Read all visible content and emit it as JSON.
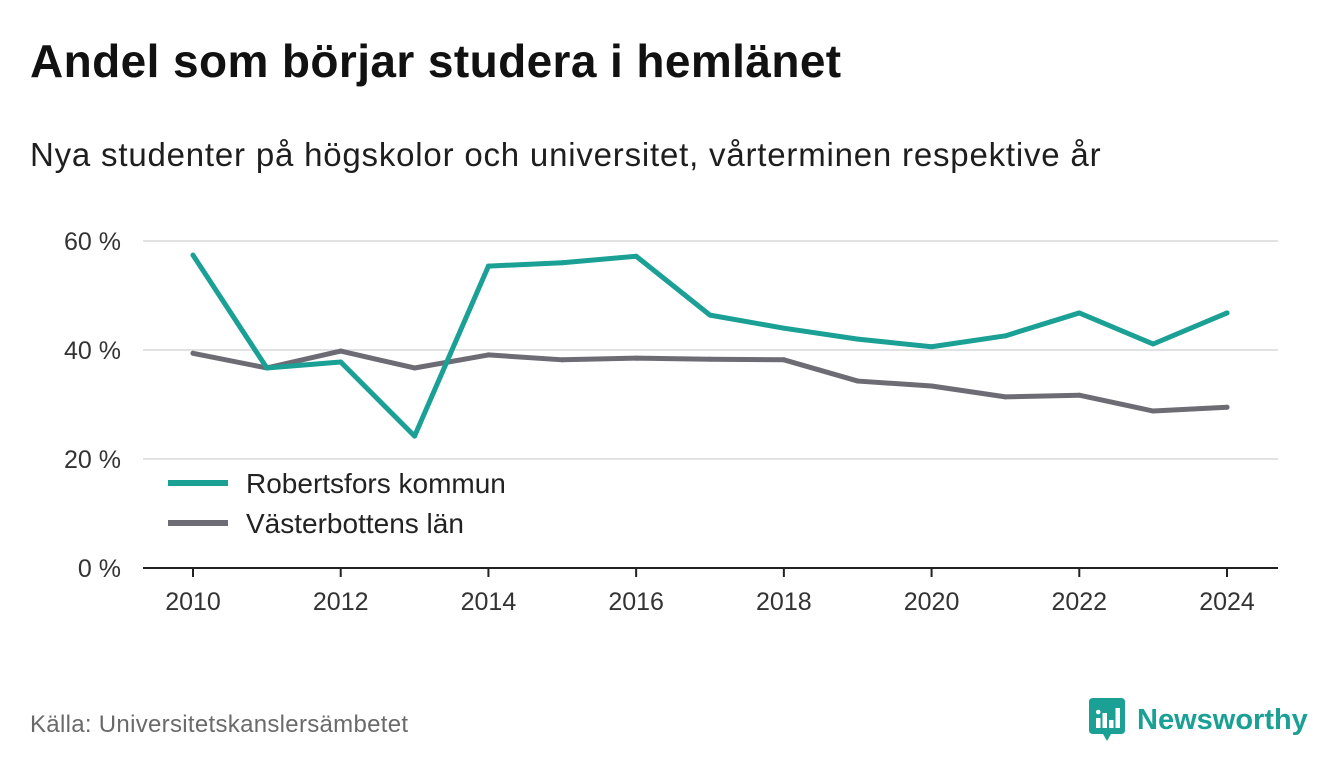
{
  "chart_data": {
    "type": "line",
    "title": "Andel som börjar studera i hemlänet",
    "subtitle": "Nya studenter på högskolor och universitet, vårterminen respektive år",
    "xlabel": "",
    "ylabel": "",
    "x": [
      2010,
      2011,
      2012,
      2013,
      2014,
      2015,
      2016,
      2017,
      2018,
      2019,
      2020,
      2021,
      2022,
      2023,
      2024
    ],
    "xlim": [
      2010,
      2024
    ],
    "ylim": [
      0,
      60
    ],
    "x_ticks": [
      2010,
      2012,
      2014,
      2016,
      2018,
      2020,
      2022,
      2024
    ],
    "x_tick_labels": [
      "2010",
      "2012",
      "2014",
      "2016",
      "2018",
      "2020",
      "2022",
      "2024"
    ],
    "y_ticks": [
      0,
      20,
      40,
      60
    ],
    "y_tick_labels": [
      "0 %",
      "20 %",
      "40 %",
      "60 %"
    ],
    "grid": "horizontal",
    "legend": "bottom-left",
    "series": [
      {
        "name": "Robertsfors kommun",
        "color": "#1aa095",
        "values": [
          57.4,
          36.7,
          37.8,
          24.2,
          55.4,
          56.0,
          57.2,
          46.4,
          44.0,
          42.0,
          40.6,
          42.6,
          46.8,
          41.1,
          46.8
        ]
      },
      {
        "name": "Västerbottens län",
        "color": "#6d6c74",
        "values": [
          39.4,
          36.7,
          39.8,
          36.7,
          39.1,
          38.2,
          38.5,
          38.3,
          38.2,
          34.3,
          33.4,
          31.4,
          31.7,
          28.8,
          29.5
        ]
      }
    ]
  },
  "source": "Källa: Universitetskanslersämbetet",
  "brand": {
    "name": "Newsworthy",
    "icon": "newsworthy-logo-icon",
    "color": "#1aa095"
  }
}
